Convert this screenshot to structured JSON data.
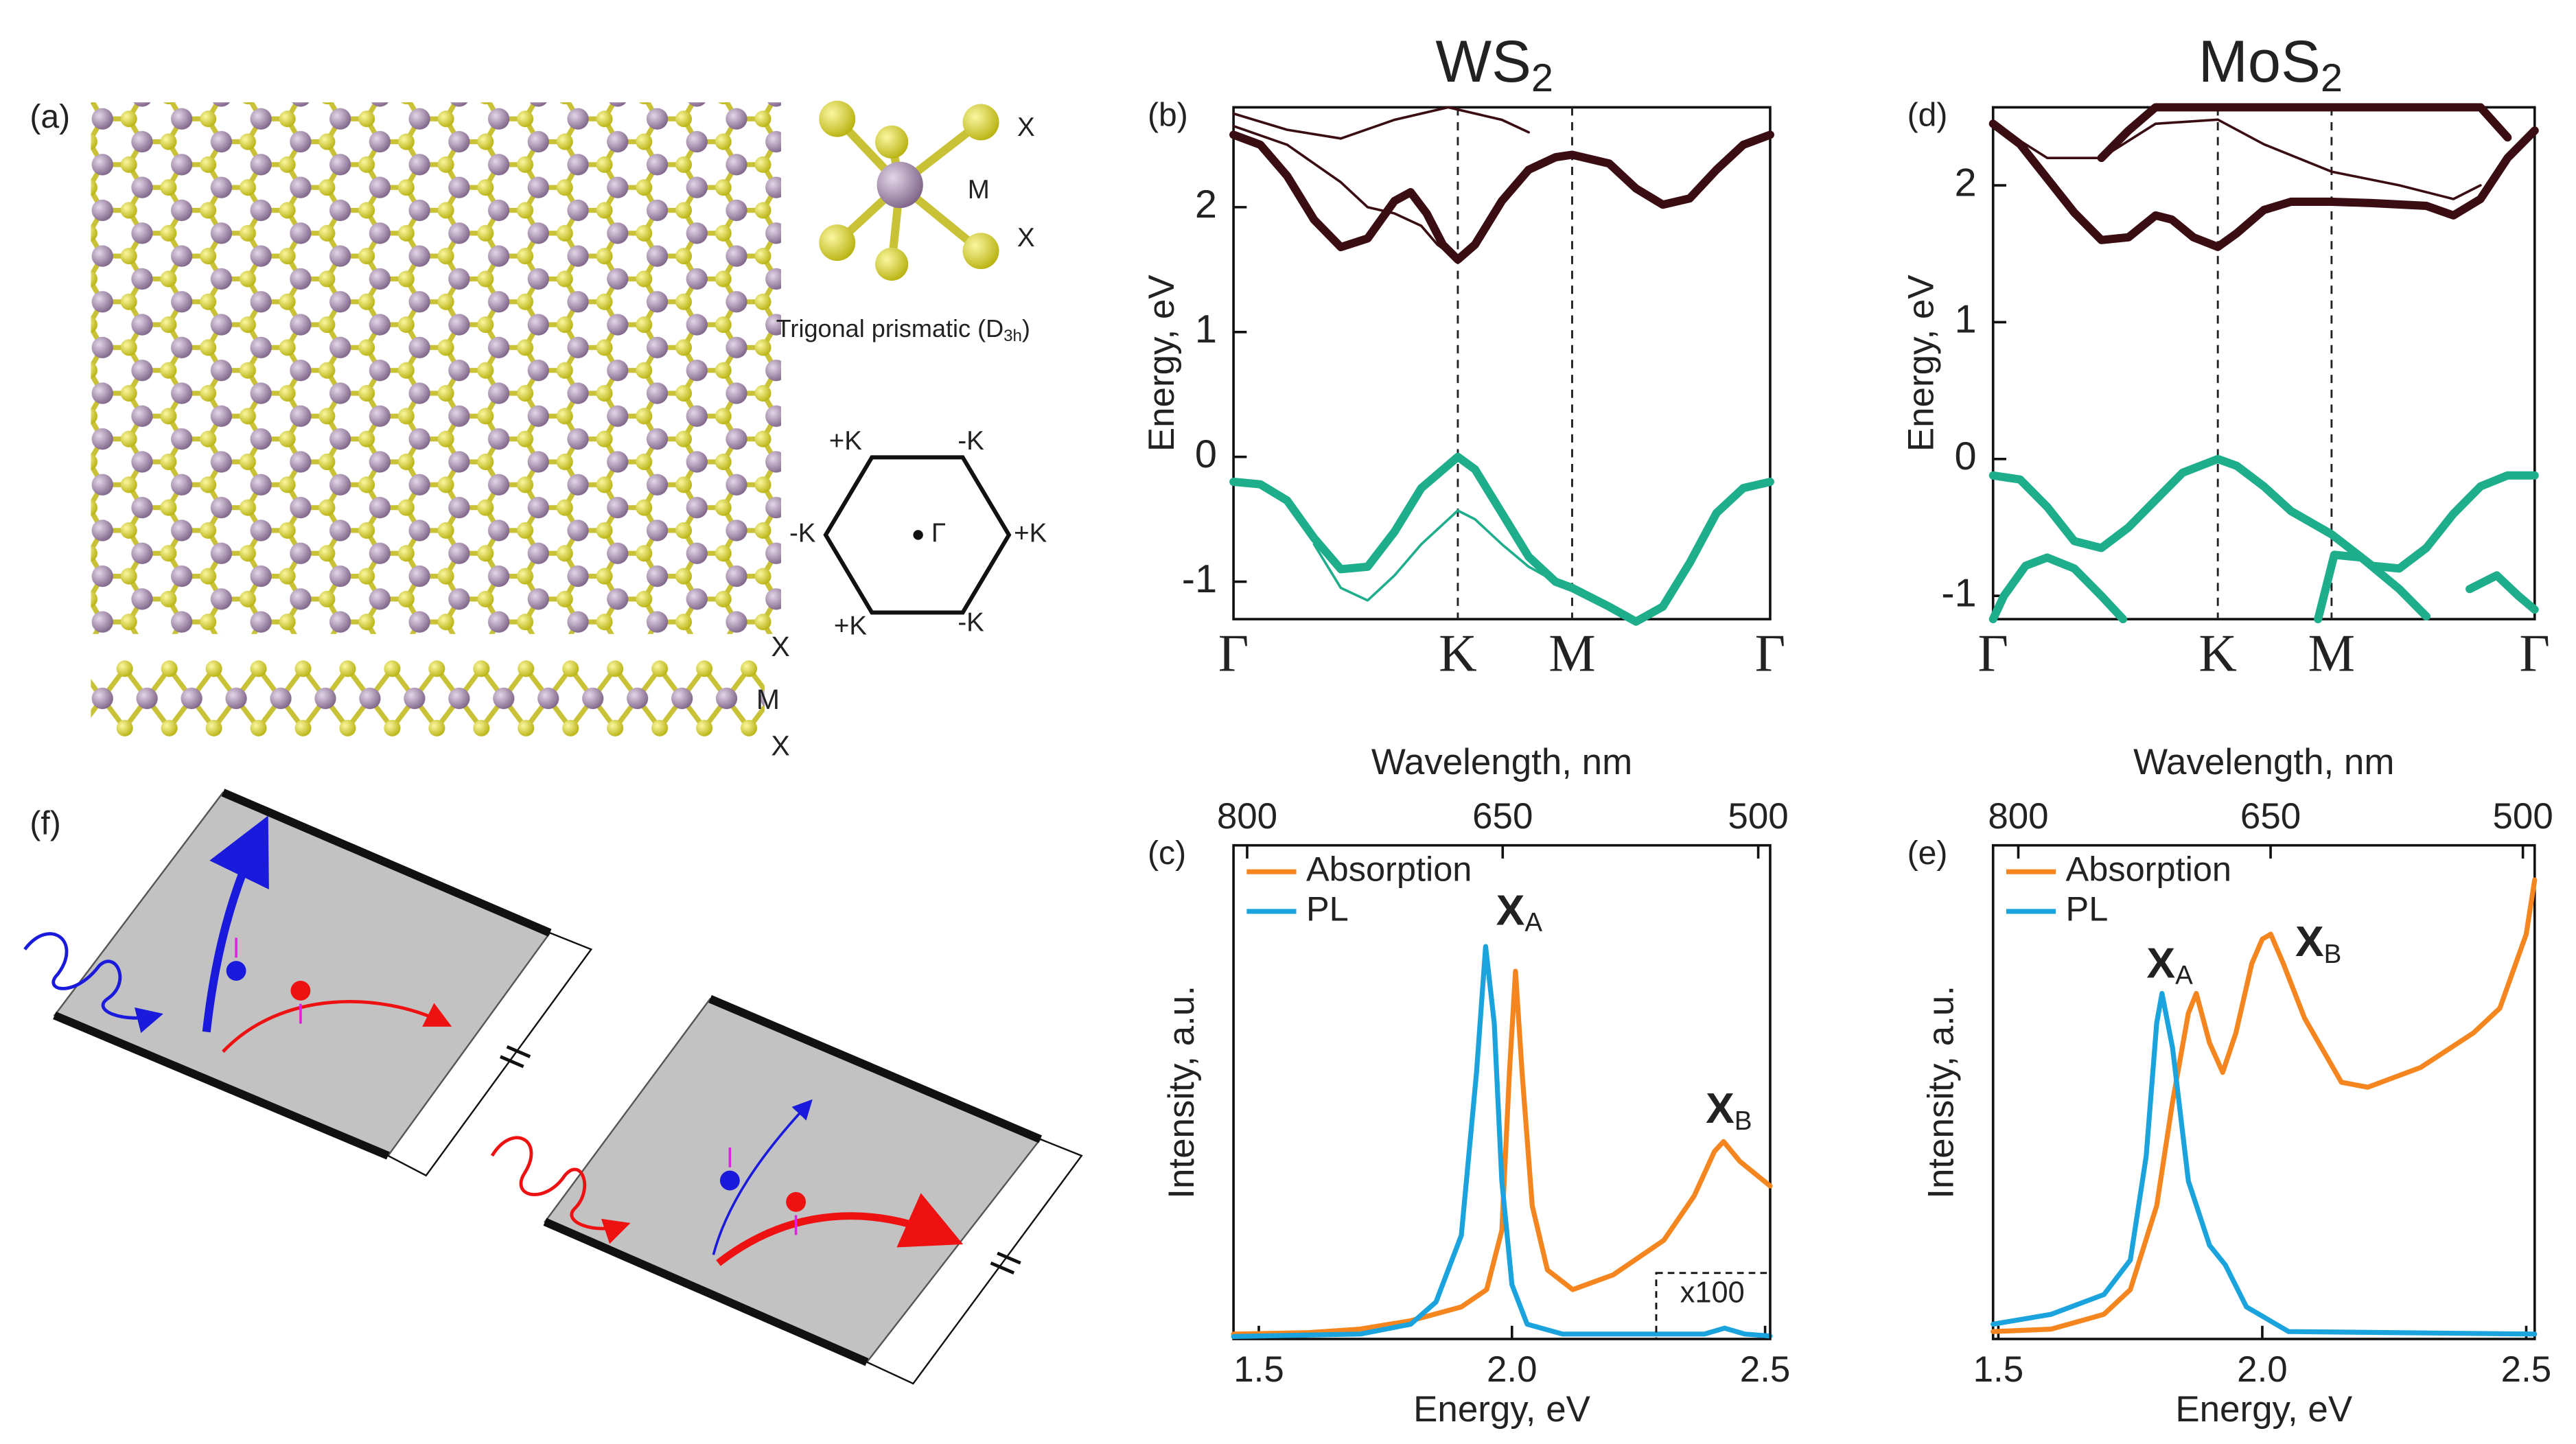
{
  "panel_a": {
    "label": "(a)",
    "structure_labels": [
      "X",
      "M",
      "X"
    ],
    "prism_labels": [
      "X",
      "M",
      "X"
    ],
    "caption": "Trigonal prismatic (D",
    "caption_sub": "3h",
    "caption_end": ")",
    "bz_labels": [
      "+K",
      "-K",
      "-K",
      "+K",
      "+K",
      "-K",
      "Γ"
    ]
  },
  "panel_f": {
    "label": "(f)"
  },
  "chart_data": [
    {
      "type": "line",
      "title": "WS",
      "title_sub": "2",
      "panel_label": "(b)",
      "y_label": "Energy, eV",
      "xlim": [
        0,
        1
      ],
      "ylim": [
        -1.3,
        2.8
      ],
      "xticks": [
        {
          "value": 0,
          "label": "Γ"
        },
        {
          "value": 0.418,
          "label": "K"
        },
        {
          "value": 0.631,
          "label": "M"
        },
        {
          "value": 1,
          "label": "Γ"
        }
      ],
      "yticks": [
        -1,
        0,
        1,
        2
      ],
      "vlines": "dashed",
      "series": [
        {
          "color": "#3a0d12",
          "line_width": 1.5,
          "x": [
            0,
            0.1,
            0.2,
            0.25,
            0.3,
            0.35,
            0.38,
            0.418
          ],
          "values": [
            2.65,
            2.5,
            2.2,
            2.0,
            1.95,
            1.85,
            1.7,
            1.58
          ]
        },
        {
          "color": "#3a0d12",
          "line_width": 1.5,
          "x": [
            0,
            0.1,
            0.2,
            0.3,
            0.4,
            0.5,
            0.55
          ],
          "values": [
            2.75,
            2.62,
            2.55,
            2.7,
            2.8,
            2.7,
            2.6
          ]
        },
        {
          "color": "#3a0d12",
          "line_width": 5,
          "x": [
            0,
            0.05,
            0.1,
            0.15,
            0.2,
            0.25,
            0.3,
            0.33,
            0.36,
            0.39,
            0.418,
            0.45,
            0.5,
            0.55,
            0.6,
            0.631,
            0.7,
            0.75,
            0.8,
            0.85,
            0.9,
            0.95,
            1
          ],
          "values": [
            2.58,
            2.5,
            2.25,
            1.9,
            1.68,
            1.75,
            2.05,
            2.12,
            1.95,
            1.7,
            1.58,
            1.7,
            2.05,
            2.3,
            2.4,
            2.42,
            2.35,
            2.15,
            2.02,
            2.07,
            2.3,
            2.5,
            2.58
          ]
        },
        {
          "color": "#1fae8b",
          "line_width": 1.5,
          "x": [
            0.15,
            0.2,
            0.25,
            0.3,
            0.35,
            0.418,
            0.45,
            0.5,
            0.55,
            0.6,
            0.631
          ],
          "values": [
            -0.7,
            -1.05,
            -1.15,
            -0.95,
            -0.7,
            -0.43,
            -0.5,
            -0.7,
            -0.88,
            -1.0,
            -1.05
          ]
        },
        {
          "color": "#1fae8b",
          "line_width": 5,
          "x": [
            0,
            0.05,
            0.1,
            0.15,
            0.2,
            0.25,
            0.3,
            0.35,
            0.418,
            0.45,
            0.5,
            0.55,
            0.6,
            0.631,
            0.7,
            0.75,
            0.8,
            0.85,
            0.9,
            0.95,
            1
          ],
          "values": [
            -0.2,
            -0.22,
            -0.35,
            -0.65,
            -0.9,
            -0.88,
            -0.6,
            -0.25,
            0,
            -0.1,
            -0.45,
            -0.8,
            -1.0,
            -1.05,
            -1.2,
            -1.32,
            -1.2,
            -0.85,
            -0.45,
            -0.25,
            -0.2
          ]
        }
      ]
    },
    {
      "type": "line",
      "title": "MoS",
      "title_sub": "2",
      "panel_label": "(d)",
      "y_label": "Energy, eV",
      "xlim": [
        0,
        1
      ],
      "ylim": [
        -1.17,
        2.57
      ],
      "xticks": [
        {
          "value": 0,
          "label": "Γ"
        },
        {
          "value": 0.415,
          "label": "K"
        },
        {
          "value": 0.625,
          "label": "M"
        },
        {
          "value": 1,
          "label": "Γ"
        }
      ],
      "yticks": [
        -1,
        0,
        1,
        2
      ],
      "vlines": "dashed",
      "series": [
        {
          "color": "#3a0d12",
          "line_width": 1.5,
          "x": [
            0,
            0.1,
            0.2,
            0.3,
            0.415,
            0.5,
            0.625,
            0.75,
            0.85,
            0.9
          ],
          "values": [
            2.45,
            2.2,
            2.2,
            2.45,
            2.48,
            2.3,
            2.1,
            2.0,
            1.9,
            2.0
          ]
        },
        {
          "color": "#3a0d12",
          "line_width": 5,
          "x": [
            0,
            0.05,
            0.1,
            0.15,
            0.2,
            0.25,
            0.3,
            0.33,
            0.37,
            0.415,
            0.45,
            0.5,
            0.55,
            0.625,
            0.7,
            0.8,
            0.85,
            0.9,
            0.95,
            1
          ],
          "values": [
            2.45,
            2.3,
            2.05,
            1.8,
            1.6,
            1.62,
            1.78,
            1.75,
            1.62,
            1.55,
            1.65,
            1.82,
            1.88,
            1.88,
            1.87,
            1.85,
            1.78,
            1.9,
            2.2,
            2.4
          ]
        },
        {
          "color": "#3a0d12",
          "line_width": 5,
          "x": [
            0.2,
            0.25,
            0.3,
            0.9,
            0.95
          ],
          "values": [
            2.2,
            2.4,
            2.57,
            2.57,
            2.35
          ]
        },
        {
          "color": "#1fae8b",
          "line_width": 5,
          "x": [
            0,
            0.05,
            0.1,
            0.15,
            0.2,
            0.25,
            0.3,
            0.35,
            0.415,
            0.45,
            0.5,
            0.55,
            0.625,
            0.7,
            0.75,
            0.8,
            0.85,
            0.9,
            0.95,
            1
          ],
          "values": [
            -0.12,
            -0.15,
            -0.35,
            -0.6,
            -0.65,
            -0.5,
            -0.3,
            -0.1,
            0,
            -0.05,
            -0.2,
            -0.38,
            -0.55,
            -0.78,
            -0.8,
            -0.65,
            -0.4,
            -0.2,
            -0.12,
            -0.12
          ]
        },
        {
          "color": "#1fae8b",
          "line_width": 5,
          "x": [
            0,
            0.02,
            0.06,
            0.1,
            0.15,
            0.2,
            0.24,
            0.3,
            0.6,
            0.63,
            0.68,
            0.75,
            0.8,
            0.85,
            0.88,
            0.93,
            0.97,
            1
          ],
          "values": [
            -1.17,
            -1.0,
            -0.78,
            -0.72,
            -0.8,
            -1.0,
            -1.17,
            null,
            -1.17,
            -0.7,
            -0.72,
            -0.95,
            -1.15,
            null,
            -0.95,
            -0.85,
            -1.0,
            -1.1
          ]
        }
      ]
    },
    {
      "type": "line",
      "panel_label": "(c)",
      "x_label": "Energy,  eV",
      "y_label": "Intensity, a.u.",
      "x2_label": "Wavelength, nm",
      "xlim": [
        1.45,
        2.51
      ],
      "ylim": [
        0,
        1
      ],
      "xticks": [
        1.5,
        {
          "value": 2,
          "label": "2.0"
        },
        2.5
      ],
      "x2lim": [
        808,
        493
      ],
      "x2ticks": [
        800,
        650,
        500
      ],
      "legend": "upper left",
      "annotations": [
        {
          "text": "X",
          "sub": "A"
        },
        {
          "text": "X",
          "sub": "B"
        }
      ],
      "inset_label": "x100",
      "series": [
        {
          "name": "Absorption",
          "color": "#f5861f",
          "line_width": 3,
          "x": [
            1.45,
            1.6,
            1.7,
            1.8,
            1.9,
            1.95,
            1.98,
            1.995,
            2.007,
            2.02,
            2.04,
            2.07,
            2.12,
            2.2,
            2.3,
            2.36,
            2.4,
            2.418,
            2.45,
            2.51
          ],
          "values": [
            0.01,
            0.013,
            0.02,
            0.037,
            0.065,
            0.1,
            0.22,
            0.54,
            0.745,
            0.54,
            0.27,
            0.14,
            0.1,
            0.13,
            0.2,
            0.29,
            0.38,
            0.4,
            0.36,
            0.31
          ]
        },
        {
          "name": "PL",
          "color": "#1aa3dc",
          "line_width": 3,
          "x": [
            1.45,
            1.7,
            1.8,
            1.85,
            1.9,
            1.93,
            1.948,
            1.965,
            1.98,
            2.0,
            2.03,
            2.1,
            2.38,
            2.42,
            2.46,
            2.51
          ],
          "values": [
            0.005,
            0.01,
            0.03,
            0.075,
            0.21,
            0.54,
            0.795,
            0.64,
            0.32,
            0.11,
            0.03,
            0.01,
            0.01,
            0.022,
            0.01,
            0.006
          ]
        }
      ]
    },
    {
      "type": "line",
      "panel_label": "(e)",
      "x_label": "Energy,  eV",
      "y_label": "Intensity, a.u.",
      "x2_label": "Wavelength, nm",
      "xlim": [
        1.49,
        2.516
      ],
      "ylim": [
        0,
        1
      ],
      "xticks": [
        1.5,
        {
          "value": 2,
          "label": "2.0"
        },
        2.5
      ],
      "x2lim": [
        815,
        493
      ],
      "x2ticks": [
        800,
        650,
        500
      ],
      "legend": "upper left",
      "annotations": [
        {
          "text": "X",
          "sub": "A"
        },
        {
          "text": "X",
          "sub": "B"
        }
      ],
      "series": [
        {
          "name": "Absorption",
          "color": "#f5861f",
          "line_width": 3,
          "x": [
            1.49,
            1.6,
            1.7,
            1.75,
            1.8,
            1.83,
            1.86,
            1.875,
            1.9,
            1.925,
            1.95,
            1.98,
            2.0,
            2.016,
            2.04,
            2.08,
            2.15,
            2.2,
            2.3,
            2.4,
            2.45,
            2.5,
            2.516
          ],
          "values": [
            0.015,
            0.02,
            0.05,
            0.1,
            0.27,
            0.48,
            0.66,
            0.7,
            0.6,
            0.54,
            0.62,
            0.76,
            0.81,
            0.82,
            0.76,
            0.65,
            0.52,
            0.51,
            0.55,
            0.62,
            0.67,
            0.82,
            0.93
          ]
        },
        {
          "name": "PL",
          "color": "#1aa3dc",
          "line_width": 3,
          "x": [
            1.49,
            1.6,
            1.7,
            1.75,
            1.78,
            1.8,
            1.81,
            1.83,
            1.86,
            1.9,
            1.93,
            1.97,
            2.05,
            2.516
          ],
          "values": [
            0.03,
            0.05,
            0.09,
            0.16,
            0.37,
            0.64,
            0.7,
            0.59,
            0.32,
            0.19,
            0.15,
            0.065,
            0.015,
            0.01
          ]
        }
      ]
    }
  ]
}
